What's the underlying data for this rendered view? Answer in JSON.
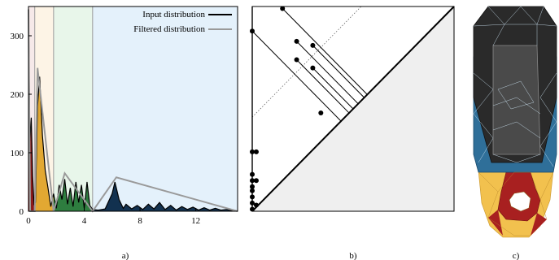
{
  "panels": {
    "a": {
      "caption": "a)"
    },
    "b": {
      "caption": "b)"
    },
    "c": {
      "caption": "c)"
    }
  },
  "chart_data": [
    {
      "type": "area",
      "title": "",
      "xlabel": "",
      "ylabel": "",
      "xlim": [
        0,
        15
      ],
      "ylim": [
        0,
        350
      ],
      "x_ticks": [
        0,
        4,
        8,
        12
      ],
      "y_ticks": [
        0,
        100,
        200,
        300
      ],
      "legend_position": "top-right",
      "regions": [
        {
          "from": 0,
          "to": 0.45,
          "color": "#8b1a1a",
          "band": "#f6e9e9"
        },
        {
          "from": 0.45,
          "to": 1.8,
          "color": "#e2a832",
          "band": "#fdf4e6"
        },
        {
          "from": 1.8,
          "to": 4.6,
          "color": "#2e7d3f",
          "band": "#e8f6ea"
        },
        {
          "from": 4.6,
          "to": 15,
          "color": "#12314f",
          "band": "#e4f1fb"
        }
      ],
      "series": [
        {
          "name": "Input distribution",
          "color": "#000000",
          "x": [
            0,
            0.1,
            0.2,
            0.3,
            0.4,
            0.5,
            0.65,
            0.8,
            1.0,
            1.2,
            1.4,
            1.6,
            1.8,
            2.0,
            2.2,
            2.4,
            2.6,
            2.8,
            3.0,
            3.2,
            3.4,
            3.6,
            3.8,
            4.0,
            4.2,
            4.4,
            4.6,
            5.0,
            5.5,
            6.0,
            6.2,
            6.5,
            6.8,
            7.0,
            7.4,
            7.8,
            8.2,
            8.6,
            9.0,
            9.4,
            9.8,
            10.2,
            10.6,
            11.0,
            11.4,
            11.8,
            12.2,
            12.6,
            13.0,
            13.4,
            13.8,
            14.2,
            14.6,
            15.0
          ],
          "y": [
            345,
            120,
            160,
            60,
            12,
            15,
            180,
            230,
            130,
            70,
            40,
            8,
            30,
            5,
            45,
            20,
            55,
            12,
            40,
            8,
            50,
            15,
            45,
            5,
            50,
            10,
            3,
            2,
            4,
            30,
            50,
            20,
            5,
            12,
            4,
            10,
            3,
            12,
            4,
            15,
            3,
            10,
            2,
            8,
            3,
            7,
            2,
            6,
            2,
            5,
            2,
            3,
            1,
            0
          ]
        },
        {
          "name": "Filtered distribution",
          "color": "#999999",
          "x": [
            0,
            0.12,
            0.3,
            0.45,
            0.65,
            1.8,
            2.6,
            4.6,
            6.3,
            15.0
          ],
          "y": [
            345,
            0,
            0,
            0,
            245,
            0,
            65,
            0,
            58,
            0
          ]
        }
      ]
    },
    {
      "type": "scatter",
      "title": "",
      "xlabel": "",
      "ylabel": "",
      "xlim": [
        0,
        1
      ],
      "ylim": [
        0,
        1
      ],
      "grid": false,
      "points": [
        {
          "birth": 0.0,
          "death": 0.88
        },
        {
          "birth": 0.15,
          "death": 0.99
        },
        {
          "birth": 0.22,
          "death": 0.83
        },
        {
          "birth": 0.3,
          "death": 0.81
        },
        {
          "birth": 0.22,
          "death": 0.74
        },
        {
          "birth": 0.3,
          "death": 0.7
        },
        {
          "birth": 0.34,
          "death": 0.48
        },
        {
          "birth": 0.0,
          "death": 0.29
        },
        {
          "birth": 0.02,
          "death": 0.29
        },
        {
          "birth": 0.0,
          "death": 0.18
        },
        {
          "birth": 0.0,
          "death": 0.15
        },
        {
          "birth": 0.02,
          "death": 0.15
        },
        {
          "birth": 0.0,
          "death": 0.12
        },
        {
          "birth": 0.0,
          "death": 0.1
        },
        {
          "birth": 0.0,
          "death": 0.07
        },
        {
          "birth": 0.0,
          "death": 0.04
        },
        {
          "birth": 0.02,
          "death": 0.03
        },
        {
          "birth": 0.0,
          "death": 0.01
        }
      ],
      "cancellation_lines": [
        {
          "birth": 0.0,
          "death": 0.88
        },
        {
          "birth": 0.15,
          "death": 0.99
        },
        {
          "birth": 0.22,
          "death": 0.83
        },
        {
          "birth": 0.3,
          "death": 0.81
        },
        {
          "birth": 0.22,
          "death": 0.74
        },
        {
          "birth": 0.3,
          "death": 0.7
        }
      ],
      "threshold_offset": 0.46
    }
  ],
  "mesh": {
    "colors": {
      "dark": "#2a2a2a",
      "blue": "#2f6f99",
      "yellow": "#f2c14e",
      "red": "#a82020"
    }
  }
}
